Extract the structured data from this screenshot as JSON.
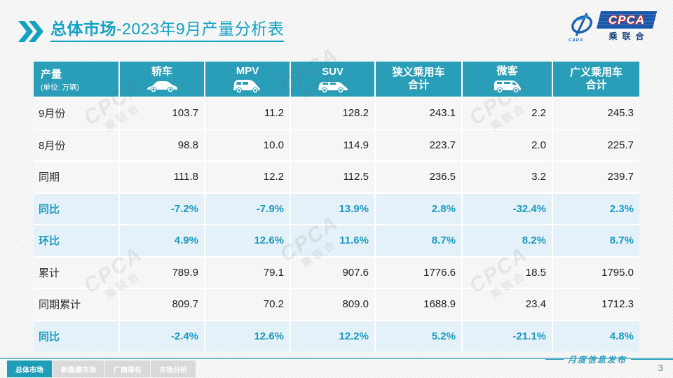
{
  "title": {
    "section": "总体市场",
    "rest": "-2023年9月产量分析表"
  },
  "logo": {
    "acronym": "CPCA",
    "cn": "乘联合",
    "emblem_sub": "CADA"
  },
  "watermark": {
    "text_top": "CPCA",
    "text_bottom": "乘联合"
  },
  "table": {
    "unit_header": {
      "title": "产量",
      "subtitle": "(单位: 万辆)"
    },
    "columns": [
      {
        "label": "轿车",
        "line2": null,
        "icon": "sedan-icon"
      },
      {
        "label": "MPV",
        "line2": null,
        "icon": "mpv-icon"
      },
      {
        "label": "SUV",
        "line2": null,
        "icon": "suv-icon"
      },
      {
        "label": "狭义乘用车",
        "line2": "合计",
        "icon": null
      },
      {
        "label": "微客",
        "line2": null,
        "icon": "microvan-icon"
      },
      {
        "label": "广义乘用车",
        "line2": "合计",
        "icon": null
      }
    ],
    "rows": [
      {
        "label": "9月份",
        "type": "data",
        "values": [
          "103.7",
          "11.2",
          "128.2",
          "243.1",
          "2.2",
          "245.3"
        ]
      },
      {
        "label": "8月份",
        "type": "data",
        "values": [
          "98.8",
          "10.0",
          "114.9",
          "223.7",
          "2.0",
          "225.7"
        ]
      },
      {
        "label": "同期",
        "type": "data",
        "values": [
          "111.8",
          "12.2",
          "112.5",
          "236.5",
          "3.2",
          "239.7"
        ]
      },
      {
        "label": "同比",
        "type": "percent",
        "values": [
          "-7.2%",
          "-7.9%",
          "13.9%",
          "2.8%",
          "-32.4%",
          "2.3%"
        ]
      },
      {
        "label": "环比",
        "type": "percent",
        "values": [
          "4.9%",
          "12.6%",
          "11.6%",
          "8.7%",
          "8.2%",
          "8.7%"
        ]
      },
      {
        "label": "累计",
        "type": "data",
        "values": [
          "789.9",
          "79.1",
          "907.6",
          "1776.6",
          "18.5",
          "1795.0"
        ]
      },
      {
        "label": "同期累计",
        "type": "data",
        "values": [
          "809.7",
          "70.2",
          "809.0",
          "1688.9",
          "23.4",
          "1712.3"
        ]
      },
      {
        "label": "同比",
        "type": "percent",
        "values": [
          "-2.4%",
          "12.6%",
          "12.2%",
          "5.2%",
          "-21.1%",
          "4.8%"
        ]
      }
    ]
  },
  "footer": {
    "tabs": [
      {
        "label": "总体市场",
        "active": true
      },
      {
        "label": "新能源市场",
        "active": false
      },
      {
        "label": "厂商排名",
        "active": false
      },
      {
        "label": "市场分析",
        "active": false
      }
    ],
    "caption": "月度信息发布",
    "page_number": "3"
  },
  "colors": {
    "title_teal": "#13a1c2",
    "header_teal": "#2a9eb8",
    "percent_bg": "#e4f1f8",
    "percent_text": "#1a9ac2",
    "tab_active": "#1e9db8",
    "logo_blue": "#1a57a8"
  }
}
